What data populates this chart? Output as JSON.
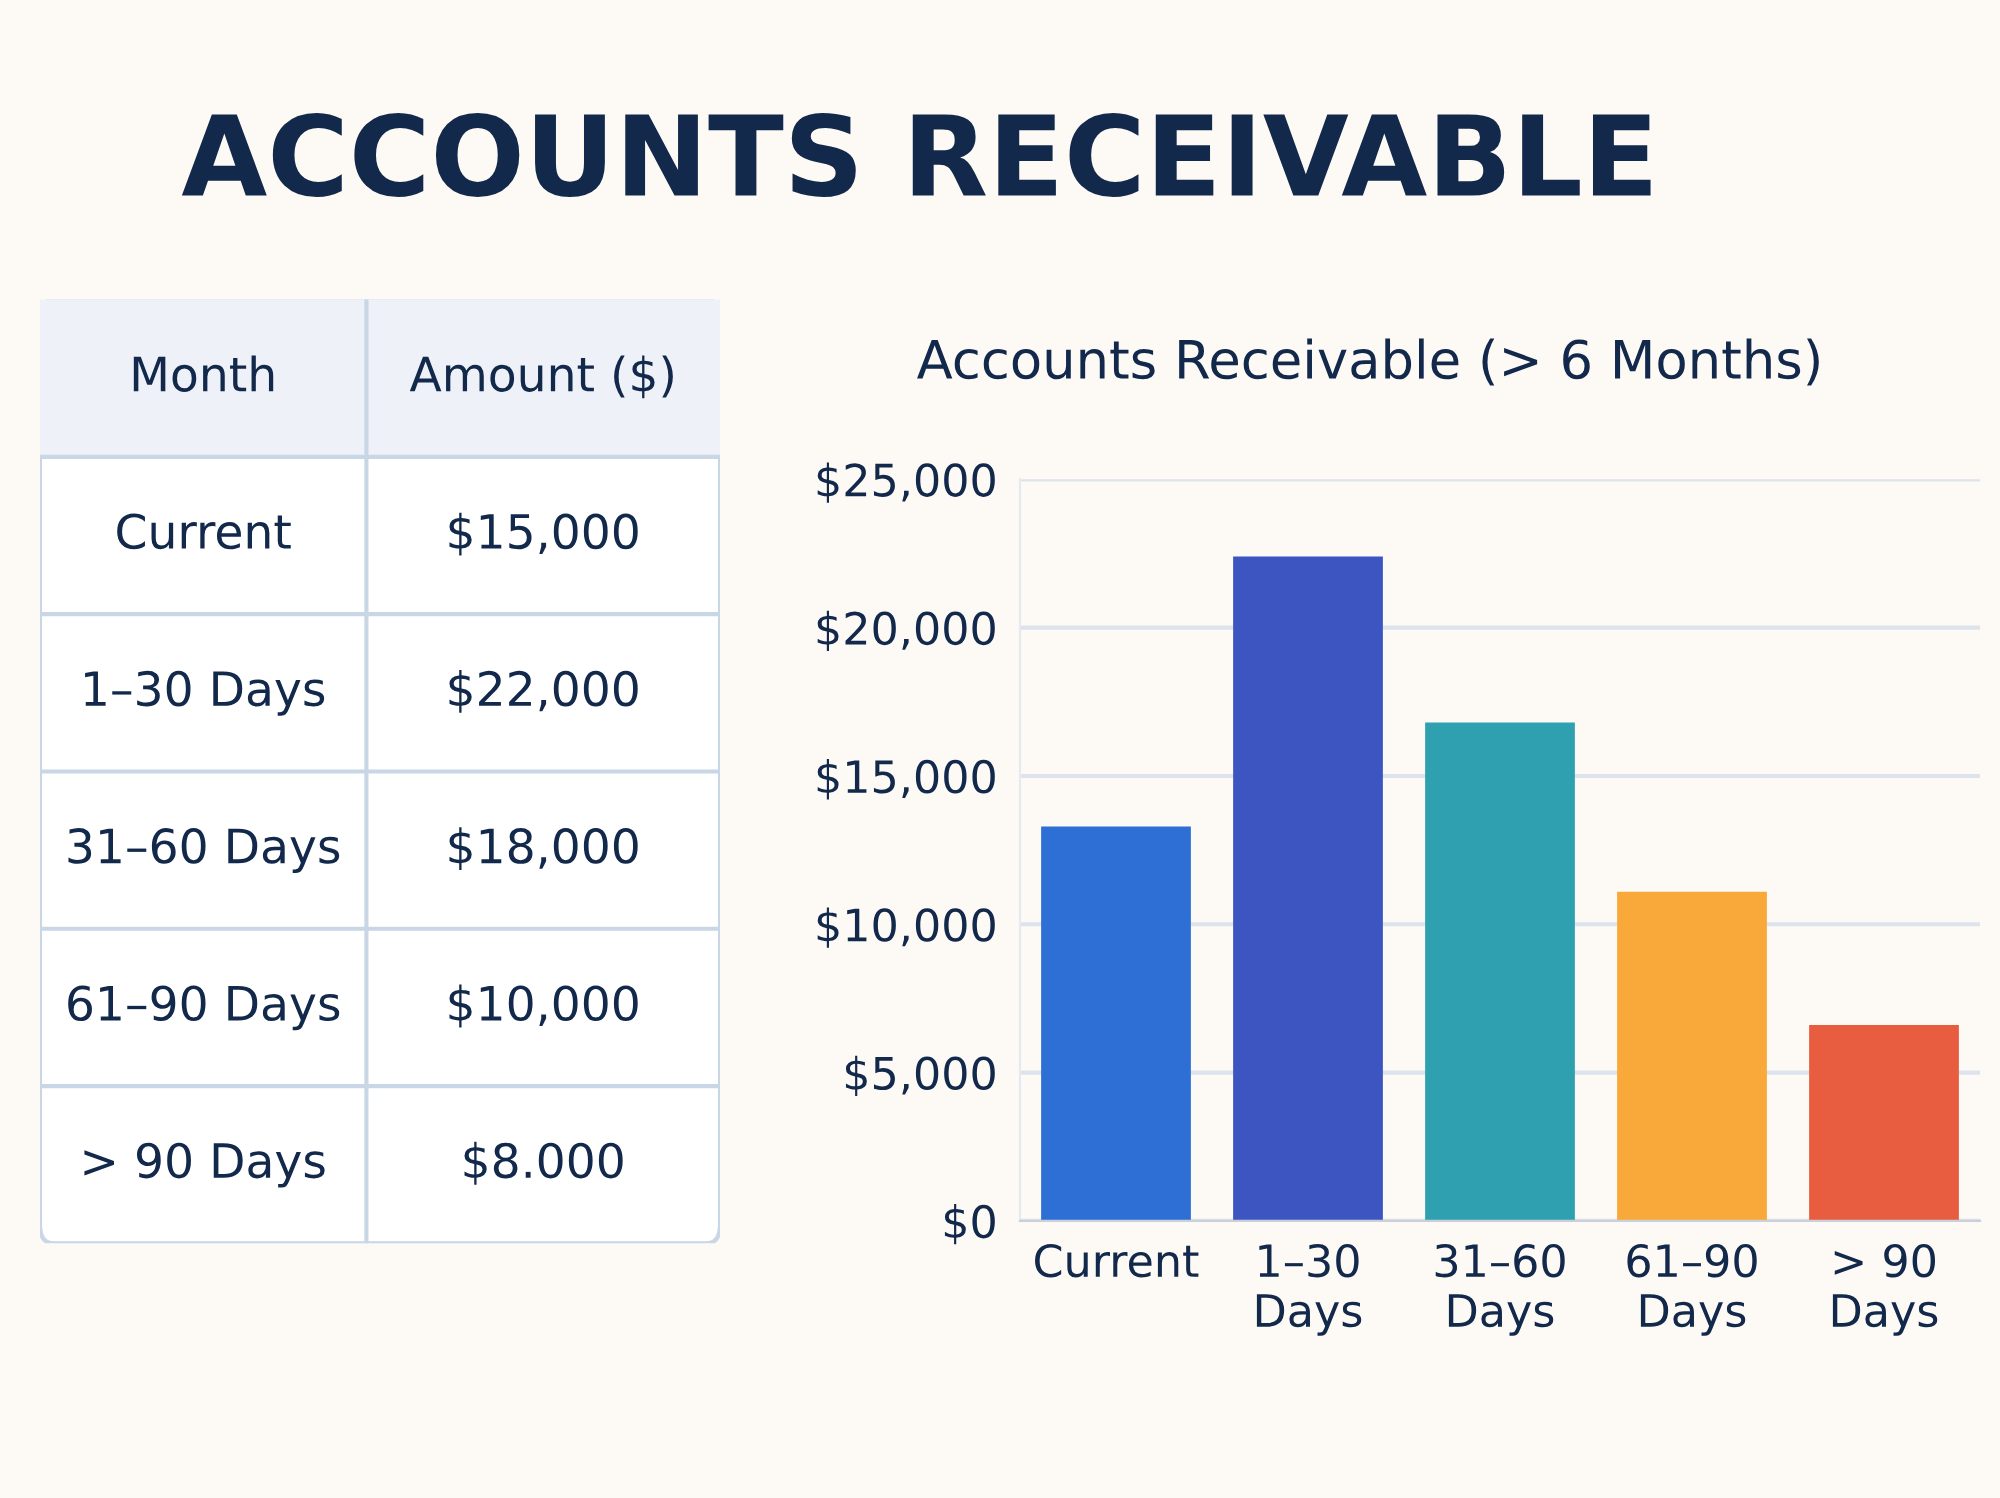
{
  "chart_data": [
    {
      "type": "other",
      "title": "ACCOUNTS RECEIVABLE",
      "annotations": [
        "Month",
        "Amount ($)",
        "Current",
        "$15,000",
        "1–30 Days",
        "$22,000",
        "31–60 Days",
        "$18,000",
        "61–90 Days",
        "$10,000",
        "> 90 Days",
        "$8.000"
      ]
    },
    {
      "type": "bar",
      "title": "Accounts Receivable (> 6 Months)",
      "categories": [
        "Current",
        "1–30 Days",
        "31–60 Days",
        "61–90 Days",
        "> 90 Days"
      ],
      "values": [
        13300,
        22400,
        16800,
        11100,
        6600
      ],
      "colors": [
        "#2e6fd6",
        "#3d55c0",
        "#2fa0b0",
        "#f8a93a",
        "#e85c40"
      ],
      "ylim": [
        0,
        25000
      ],
      "yticks": [
        {
          "value": 0,
          "label": "$0"
        },
        {
          "value": 5000,
          "label": "$5,000"
        },
        {
          "value": 10000,
          "label": "$10,000"
        },
        {
          "value": 15000,
          "label": "$15,000"
        },
        {
          "value": 20000,
          "label": "$20,000"
        },
        {
          "value": 25000,
          "label": "$25,000"
        }
      ],
      "grid": "y"
    }
  ]
}
